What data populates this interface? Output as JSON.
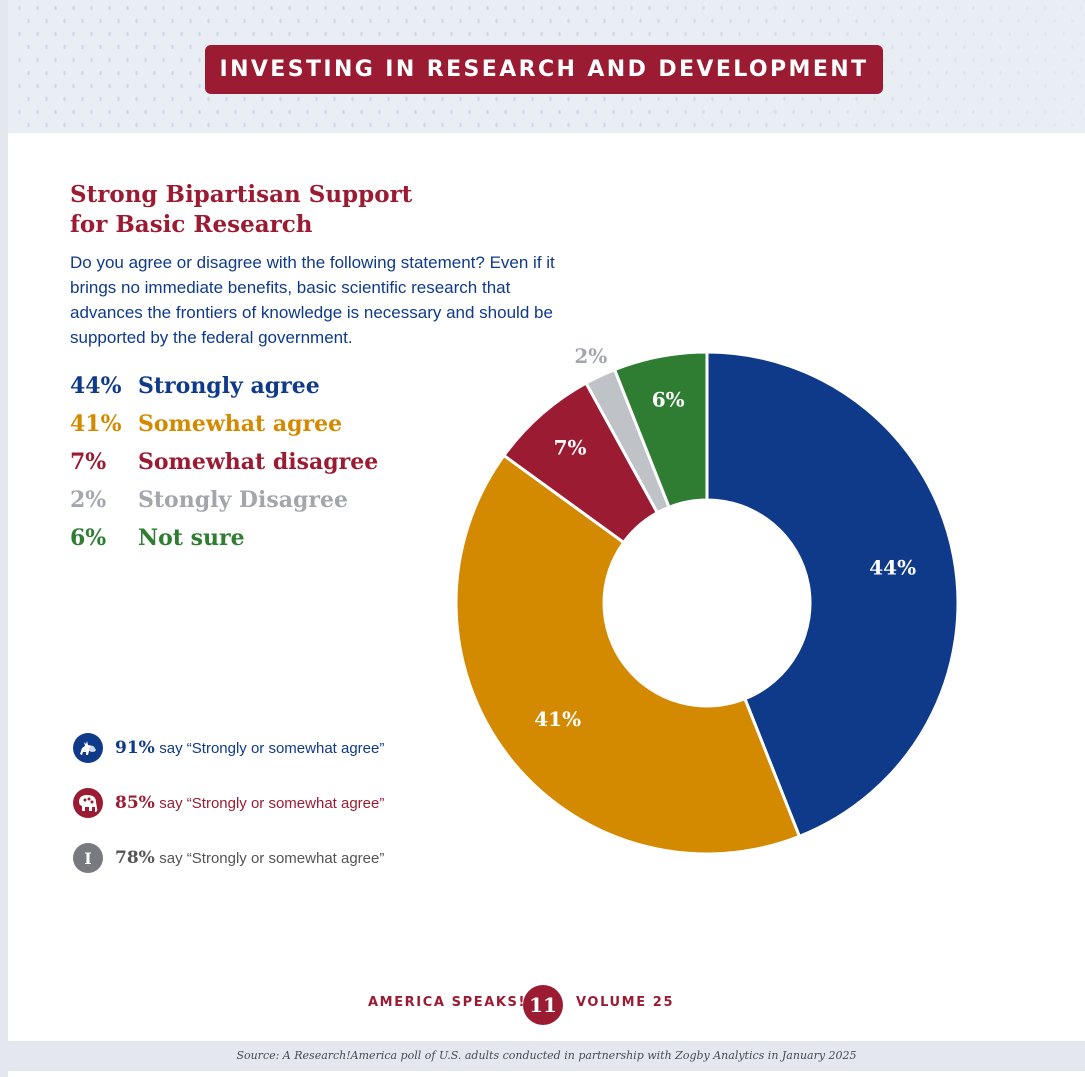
{
  "banner": {
    "title": "INVESTING IN RESEARCH AND DEVELOPMENT"
  },
  "headline": {
    "line1": "Strong Bipartisan Support",
    "line2": "for Basic Research"
  },
  "question": "Do you agree or disagree with the following statement? Even if it brings no immediate benefits, basic scientific research that advances the frontiers of knowledge is necessary and should be supported by the federal government.",
  "legend": [
    {
      "pct": "44%",
      "label": "Strongly agree",
      "color": "#0f3a8a"
    },
    {
      "pct": "41%",
      "label": "Somewhat agree",
      "color": "#d48a00"
    },
    {
      "pct": "7%",
      "label": "Somewhat disagree",
      "color": "#9b1c32"
    },
    {
      "pct": "2%",
      "label": "Stongly Disagree",
      "color": "#a3a7ad"
    },
    {
      "pct": "6%",
      "label": "Not sure",
      "color": "#2e7d32"
    }
  ],
  "party_results": [
    {
      "party": "democrat",
      "icon": "donkey-icon",
      "value": "91%",
      "text": "say “Strongly or somewhat agree”",
      "color": "#0f3a8a"
    },
    {
      "party": "republican",
      "icon": "elephant-icon",
      "value": "85%",
      "text": "say “Strongly or somewhat agree”",
      "color": "#9b1c32"
    },
    {
      "party": "independent",
      "icon": "independent-icon",
      "icon_letter": "I",
      "value": "78%",
      "text": "say “Strongly or somewhat agree”",
      "color": "#555555"
    }
  ],
  "chart_data": {
    "type": "pie",
    "style": "donut",
    "title": "Strong Bipartisan Support for Basic Research",
    "slices": [
      {
        "label": "Strongly agree",
        "value": 44,
        "display": "44%",
        "color": "#0f3a8a",
        "label_color": "#ffffff"
      },
      {
        "label": "Somewhat agree",
        "value": 41,
        "display": "41%",
        "color": "#d48a00",
        "label_color": "#ffffff"
      },
      {
        "label": "Somewhat disagree",
        "value": 7,
        "display": "7%",
        "color": "#9b1c32",
        "label_color": "#ffffff"
      },
      {
        "label": "Stongly Disagree",
        "value": 2,
        "display": "2%",
        "color": "#bfc3c8",
        "label_color": "#a3a7ad",
        "label_outside": true
      },
      {
        "label": "Not sure",
        "value": 6,
        "display": "6%",
        "color": "#2e7d32",
        "label_color": "#ffffff"
      }
    ]
  },
  "footer": {
    "left": "AMERICA SPEAKS!",
    "page_number": "11",
    "right": "VOLUME 25"
  },
  "source": "Source: A Research!America poll of U.S. adults conducted in partnership with Zogby Analytics in January 2025"
}
